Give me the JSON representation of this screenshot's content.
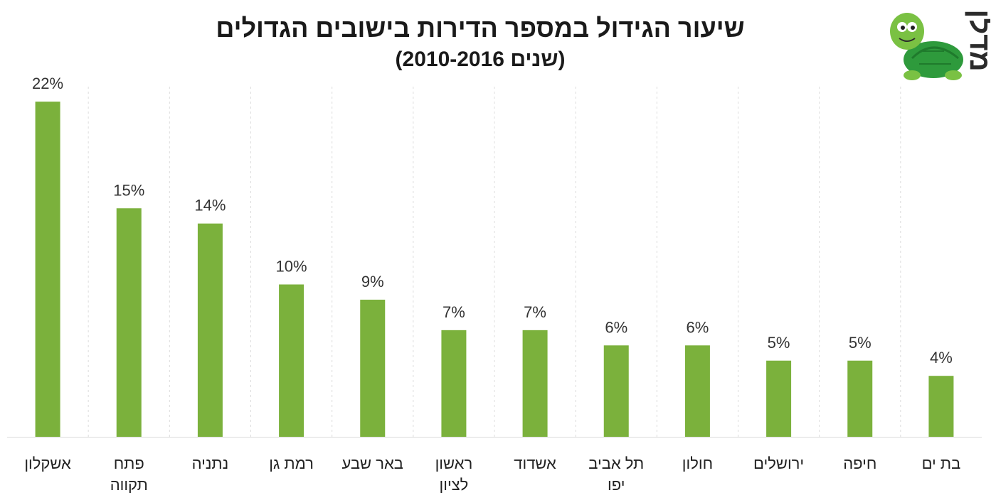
{
  "logo": {
    "text": "מדלן",
    "icon": "turtle-icon",
    "colors": {
      "shell": "#2e9a3c",
      "body": "#7ac143",
      "text": "#2b2b2b"
    }
  },
  "chart_data": {
    "type": "bar",
    "title": "שיעור הגידול במספר הדירות בישובים הגדולים",
    "subtitle": "(שנים 2010-2016)",
    "xlabel": "",
    "ylabel": "",
    "ylim": [
      0,
      24
    ],
    "grid": "vertical-dashed",
    "bar_color": "#7bb13c",
    "categories": [
      [
        "אשקלון"
      ],
      [
        "פתח",
        "תקווה"
      ],
      [
        "נתניה"
      ],
      [
        "רמת גן"
      ],
      [
        "באר שבע"
      ],
      [
        "ראשון",
        "לציון"
      ],
      [
        "אשדוד"
      ],
      [
        "תל אביב",
        "יפו"
      ],
      [
        "חולון"
      ],
      [
        "ירושלים"
      ],
      [
        "חיפה"
      ],
      [
        "בת ים"
      ]
    ],
    "values": [
      22,
      15,
      14,
      10,
      9,
      7,
      7,
      6,
      6,
      5,
      5,
      4
    ],
    "value_labels": [
      "22%",
      "15%",
      "14%",
      "10%",
      "9%",
      "7%",
      "7%",
      "6%",
      "6%",
      "5%",
      "5%",
      "4%"
    ]
  }
}
